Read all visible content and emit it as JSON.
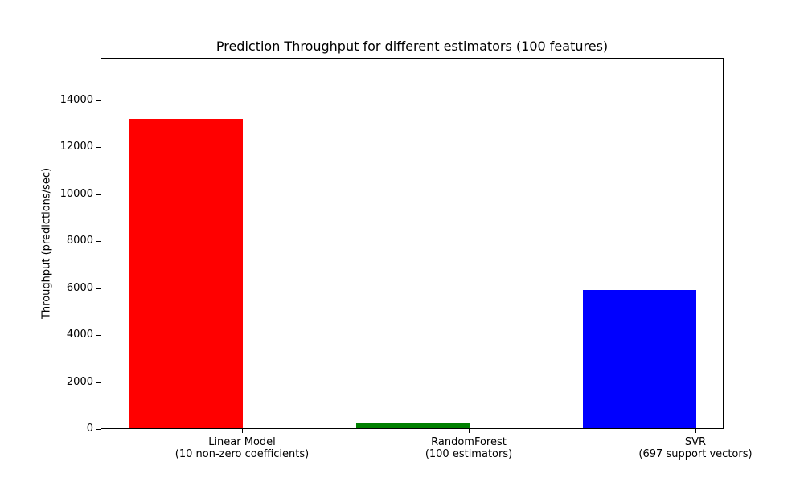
{
  "chart_data": {
    "type": "bar",
    "title": "Prediction Throughput for different estimators (100 features)",
    "xlabel": "",
    "ylabel": "Throughput (predictions/sec)",
    "categories": [
      "Linear Model\n(10 non-zero coefficients)",
      "RandomForest\n(100 estimators)",
      "SVR\n(697 support vectors)"
    ],
    "category_lines": [
      [
        "Linear Model",
        "(10 non-zero coefficients)"
      ],
      [
        "RandomForest",
        "(100 estimators)"
      ],
      [
        "SVR",
        "(697 support vectors)"
      ]
    ],
    "values": [
      13180,
      205,
      5890
    ],
    "colors": [
      "#ff0000",
      "#008000",
      "#0000ff"
    ],
    "ylim": [
      0,
      15800
    ],
    "yticks": [
      0,
      2000,
      4000,
      6000,
      8000,
      10000,
      12000,
      14000
    ],
    "grid": false,
    "legend": null
  }
}
